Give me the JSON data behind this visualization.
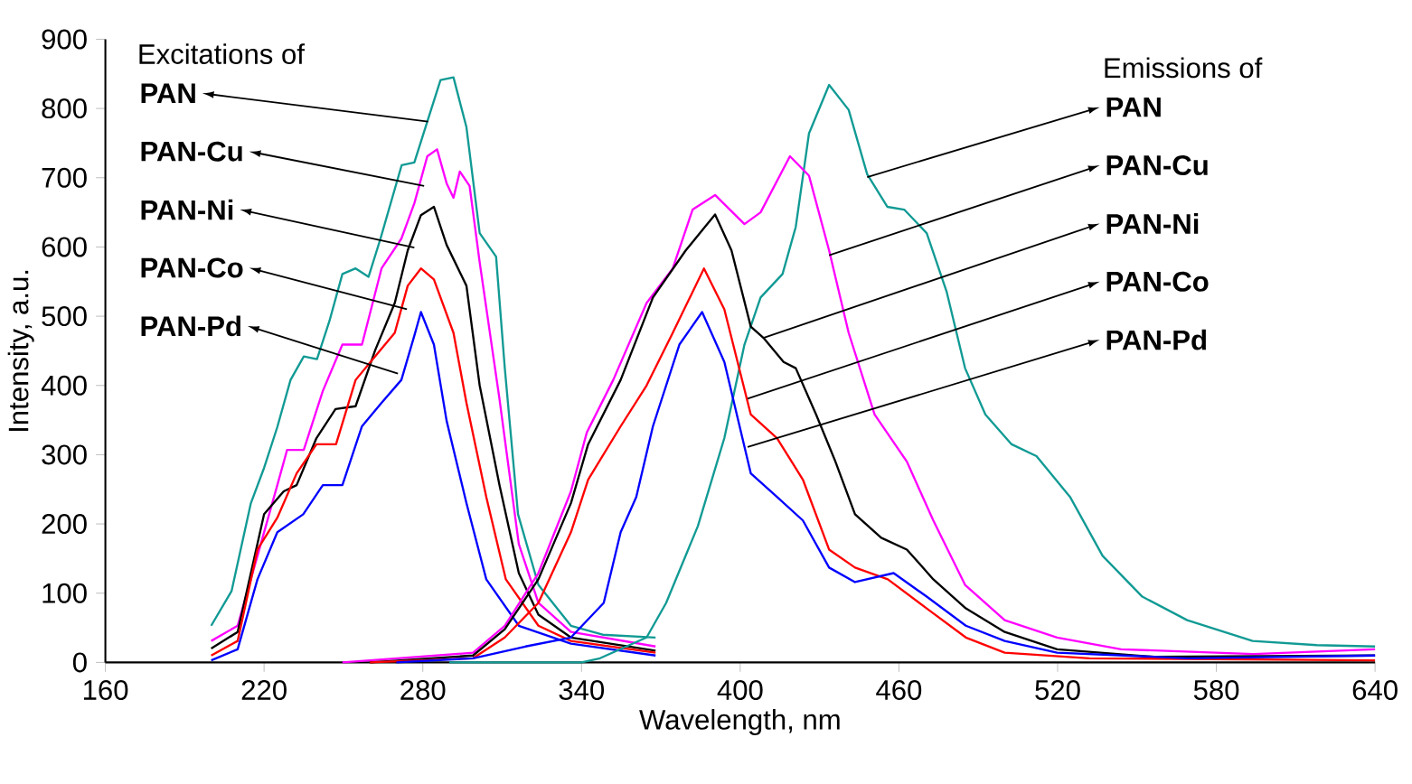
{
  "chart_data": {
    "type": "line",
    "xlabel": "Wavelength, nm",
    "ylabel": "Intensity, a.u.",
    "xlim": [
      160,
      640
    ],
    "xticks": [
      160,
      220,
      280,
      340,
      400,
      460,
      520,
      580,
      640
    ],
    "ylim": [
      0,
      900
    ],
    "yticks": [
      0,
      100,
      200,
      300,
      400,
      500,
      600,
      700,
      800,
      900
    ],
    "grid": false,
    "marker": "none",
    "line_style": "solid",
    "series": [
      {
        "color": "#119a94",
        "x": [
          200,
          207.7,
          215,
          220,
          225,
          230,
          235,
          240,
          244.7,
          249.6,
          254.6,
          259.5,
          264,
          272,
          276.8,
          281.7,
          286.7,
          291.6,
          296.5,
          301.5,
          307.7,
          311,
          316,
          323.7,
          336,
          348,
          368
        ],
        "values": [
          53,
          103,
          230,
          281,
          340,
          408,
          442,
          438,
          493,
          561,
          569,
          557,
          612,
          718,
          722,
          781,
          841,
          845,
          773,
          620,
          586,
          425,
          214,
          112,
          53,
          40,
          36
        ]
      },
      {
        "color": "#ff00ff",
        "x": [
          200,
          210,
          217.5,
          225,
          228.7,
          235,
          242.2,
          249.6,
          257,
          264.4,
          271.9,
          276.8,
          281.7,
          285.4,
          289,
          291.6,
          294,
          297.7,
          301.5,
          308.9,
          316.3,
          323.7,
          336,
          368
        ],
        "values": [
          31,
          53,
          154,
          256,
          307,
          307,
          392,
          459,
          459,
          569,
          612,
          663,
          731,
          741,
          692,
          671,
          709,
          688,
          578,
          383,
          171,
          86,
          44,
          23
        ]
      },
      {
        "color": "#000000",
        "x": [
          200,
          210,
          220,
          227.4,
          232.3,
          239.8,
          247,
          254.6,
          262,
          269.4,
          274.3,
          279.3,
          284.2,
          289,
          296.5,
          301.5,
          309,
          316.3,
          323.7,
          336,
          368
        ],
        "values": [
          20,
          44,
          214,
          247,
          256,
          324,
          366,
          370,
          451,
          519,
          595,
          646,
          658,
          603,
          544,
          400,
          256,
          129,
          69,
          36,
          17
        ]
      },
      {
        "color": "#ff0000",
        "x": [
          200,
          210,
          217.5,
          225,
          232.3,
          239.8,
          247.2,
          254.6,
          262,
          269.4,
          274.3,
          279.3,
          284.2,
          291.6,
          296.5,
          304,
          311.4,
          323.7,
          336,
          368
        ],
        "values": [
          10,
          31,
          163,
          209,
          273,
          315,
          315,
          408,
          442,
          476,
          544,
          569,
          553,
          476,
          375,
          239,
          120,
          53,
          31,
          14
        ]
      },
      {
        "color": "#0000ff",
        "x": [
          200,
          210,
          217.5,
          225,
          234.8,
          242.2,
          249.6,
          257,
          264.4,
          271.9,
          276.8,
          279.3,
          284.2,
          289,
          296.5,
          304,
          316.3,
          336,
          368
        ],
        "values": [
          3,
          19,
          120,
          188,
          214,
          256,
          256,
          341,
          375,
          408,
          472,
          506,
          459,
          349,
          230,
          120,
          53,
          27,
          10
        ]
      },
      {
        "color": "#119a94",
        "x": [
          290,
          340,
          347,
          364.6,
          372,
          384,
          394,
          401.6,
          407.7,
          416,
          421,
          426,
          433.6,
          441,
          448,
          455.6,
          462,
          470.5,
          478,
          485,
          492.7,
          502.6,
          512,
          524.7,
          537,
          552,
          569,
          593.7,
          618,
          640
        ],
        "values": [
          0,
          0,
          6,
          36,
          86,
          197,
          324,
          459,
          527,
          561,
          629,
          764,
          834,
          798,
          705,
          658,
          654,
          620,
          536,
          425,
          358,
          315,
          298,
          239,
          154,
          95,
          61,
          31,
          25,
          23
        ]
      },
      {
        "color": "#ff00ff",
        "x": [
          249.6,
          299,
          311,
          323.7,
          336,
          342,
          352,
          364.6,
          374.5,
          382,
          390.5,
          401.6,
          407.7,
          418.8,
          426,
          433.6,
          441,
          450.8,
          463,
          473,
          485,
          500,
          519.8,
          544,
          594,
          640
        ],
        "values": [
          0,
          14,
          53,
          129,
          247,
          332,
          408,
          519,
          569,
          654,
          675,
          633,
          650,
          731,
          703,
          595,
          476,
          358,
          290,
          205,
          112,
          61,
          36,
          19,
          12,
          19
        ]
      },
      {
        "color": "#000000",
        "x": [
          260,
          299,
          311,
          323.7,
          336,
          342.5,
          354.8,
          367,
          379.4,
          390.5,
          396.7,
          404,
          409,
          416.4,
          421,
          428.7,
          436,
          443.4,
          453.3,
          463,
          473,
          485.3,
          500,
          519.8,
          556.7,
          640
        ],
        "values": [
          0,
          10,
          48,
          120,
          230,
          315,
          408,
          527,
          595,
          647,
          595,
          485,
          468,
          434,
          425,
          358,
          290,
          214,
          180,
          163,
          120,
          78,
          44,
          19,
          8,
          10
        ]
      },
      {
        "color": "#ff0000",
        "x": [
          260,
          299,
          311,
          323.7,
          336,
          342.5,
          354.8,
          364.6,
          374.5,
          386.3,
          394,
          404,
          413.9,
          423.7,
          433.6,
          443.4,
          455.8,
          470.5,
          485.3,
          500,
          532,
          640
        ],
        "values": [
          0,
          6,
          36,
          86,
          188,
          264,
          341,
          400,
          476,
          569,
          510,
          358,
          324,
          264,
          163,
          137,
          120,
          78,
          36,
          14,
          6,
          3
        ]
      },
      {
        "color": "#0000ff",
        "x": [
          270,
          299,
          318.8,
          336,
          348.4,
          354.8,
          360.7,
          367,
          377,
          385.6,
          394,
          404,
          413.9,
          423.7,
          433.6,
          443.4,
          458,
          470.5,
          485.3,
          500,
          519.8,
          569,
          640
        ],
        "values": [
          0,
          6,
          23,
          36,
          86,
          188,
          239,
          341,
          459,
          506,
          434,
          273,
          239,
          205,
          137,
          116,
          129,
          95,
          53,
          31,
          14,
          6,
          10
        ]
      }
    ],
    "annotations": [
      "Excitations of",
      {
        "text": "PAN",
        "x": 282,
        "y": 781
      },
      {
        "text": "PAN-Cu",
        "x": 280.5,
        "y": 688
      },
      {
        "text": "PAN-Ni",
        "x": 276.8,
        "y": 599
      },
      {
        "text": "PAN-Co",
        "x": 274,
        "y": 510
      },
      {
        "text": "PAN-Pd",
        "x": 270.6,
        "y": 417
      },
      "Emissions of",
      {
        "text": "PAN",
        "x": 448,
        "y": 701
      },
      {
        "text": "PAN-Cu",
        "x": 433.6,
        "y": 588
      },
      {
        "text": "PAN-Ni",
        "x": 409,
        "y": 469
      },
      {
        "text": "PAN-Co",
        "x": 402.8,
        "y": 381
      },
      {
        "text": "PAN-Pd",
        "x": 402.8,
        "y": 311
      }
    ]
  }
}
